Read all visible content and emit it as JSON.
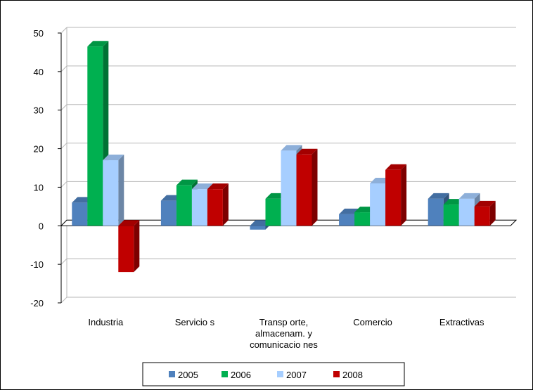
{
  "chart_data": {
    "type": "bar",
    "style": "3d-clustered-column",
    "categories": [
      [
        "Industria"
      ],
      [
        "Servicio s"
      ],
      [
        "Transp orte,",
        "almacenam.  y",
        "comunicacio nes"
      ],
      [
        "Comercio"
      ],
      [
        "Extractivas"
      ]
    ],
    "series": [
      {
        "name": "2005",
        "color": "#4F81BD",
        "values": [
          6,
          6.5,
          -1,
          3,
          7
        ]
      },
      {
        "name": "2006",
        "color": "#00B050",
        "values": [
          46.5,
          10.5,
          7,
          3.5,
          5.5
        ]
      },
      {
        "name": "2007",
        "color": "#A6CEFF",
        "values": [
          17,
          9.5,
          19.5,
          11,
          7
        ]
      },
      {
        "name": "2008",
        "color": "#C00000",
        "values": [
          -12,
          9.5,
          18.5,
          14.5,
          5
        ]
      }
    ],
    "y_ticks": [
      "-20",
      "-10",
      "0",
      "10",
      "20",
      "30",
      "40",
      "50"
    ],
    "ylim": [
      -20,
      50
    ],
    "gridlines": true,
    "legend_position": "bottom"
  }
}
